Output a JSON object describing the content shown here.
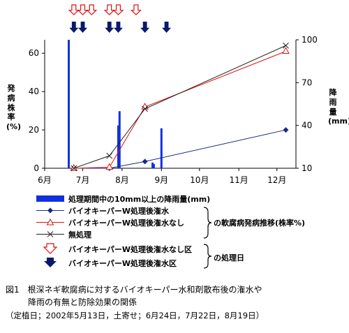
{
  "chart_data": {
    "type": "line",
    "y_left_label": "発病株率(%)",
    "y_right_label": "降雨量(mm)",
    "x_ticks": [
      "6月",
      "7月",
      "8月",
      "9月",
      "10月",
      "11月",
      "12月"
    ],
    "y_left_ticks": [
      "0",
      "20",
      "40",
      "60"
    ],
    "y_right_ticks": [
      "10",
      "40",
      "70",
      "100"
    ],
    "y_left_range": [
      0,
      67
    ],
    "y_right_range": [
      10,
      100
    ],
    "series": [
      {
        "name": "バイオキーパーW処理後潅水",
        "marker": "diamond",
        "color": "#1a2a8a",
        "points": [
          [
            "2002-06-24",
            0
          ],
          [
            "2002-07-22",
            0
          ],
          [
            "2002-08-19",
            3.5
          ],
          [
            "2002-12-08",
            20
          ]
        ]
      },
      {
        "name": "バイオキーパーW処理後潅水なし",
        "marker": "triangle",
        "color": "#e01010",
        "points": [
          [
            "2002-06-24",
            0
          ],
          [
            "2002-07-22",
            0.5
          ],
          [
            "2002-08-19",
            32
          ],
          [
            "2002-12-08",
            61
          ]
        ]
      },
      {
        "name": "無処理",
        "marker": "x",
        "color": "#222222",
        "points": [
          [
            "2002-06-24",
            0
          ],
          [
            "2002-07-22",
            6.5
          ],
          [
            "2002-08-19",
            31
          ],
          [
            "2002-12-08",
            64
          ]
        ]
      }
    ],
    "rainfall": {
      "name": "処理期間中の10mm以上の降雨量(mm)",
      "color": "#1030e0",
      "bars": [
        [
          "2002-06-20",
          100
        ],
        [
          "2002-07-29",
          40
        ],
        [
          "2002-07-30",
          50
        ],
        [
          "2002-08-25",
          14
        ],
        [
          "2002-08-26",
          13
        ],
        [
          "2002-09-01",
          38
        ]
      ]
    },
    "treatment_dates": {
      "no_irrigation": [
        "2002-06-24",
        "2002-07-01",
        "2002-07-08",
        "2002-07-22",
        "2002-07-29",
        "2002-08-12"
      ],
      "irrigation": [
        "2002-06-24",
        "2002-07-01",
        "2002-07-22",
        "2002-07-29",
        "2002-08-19",
        "2002-09-05"
      ]
    }
  },
  "legend": {
    "rain": "処理期間中の10mm以上の降雨量(mm)",
    "s1": "バイオキーパーW処理後潅水",
    "s2": "バイオキーパーW処理後潅水なし",
    "s3": "無処理",
    "brace1": "の軟腐病発病推移(株率%)",
    "t1": "バイオキーパーW処理後潅水なし区",
    "t2": "バイオキーパーW処理後潅水区",
    "brace2": "の処理日"
  },
  "caption": {
    "line1": "図1　根深ネギ軟腐病に対するバイオキーパー水和剤散布後の潅水や",
    "line2": "降雨の有無と防除効果の関係",
    "line3": "（定植日；2002年5月13日，土寄せ；6月24日，7月22日，8月19日）"
  },
  "colors": {
    "series_blue": "#1a2a8a",
    "series_red": "#e01010",
    "series_black": "#222222",
    "rain_bar": "#1030e0",
    "arrow_red": "#e01010",
    "arrow_navy": "#0a1a6a"
  }
}
